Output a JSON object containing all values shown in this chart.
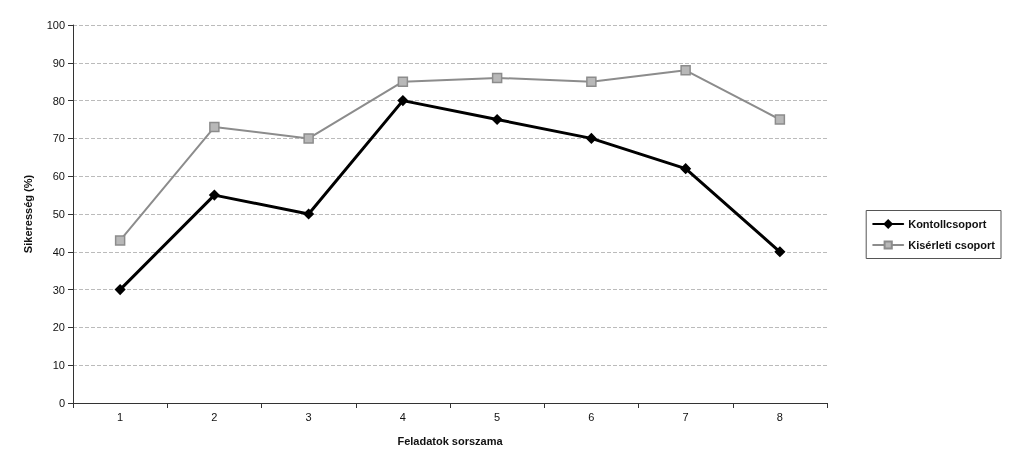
{
  "chart_data": {
    "type": "line",
    "xlabel": "Feladatok sorszama",
    "ylabel": "Sikeresség (%)",
    "categories": [
      "1",
      "2",
      "3",
      "4",
      "5",
      "6",
      "7",
      "8"
    ],
    "series": [
      {
        "name": "Kontollcsoport",
        "color": "#000000",
        "marker": "diamond",
        "values": [
          30,
          55,
          50,
          80,
          75,
          70,
          62,
          40
        ]
      },
      {
        "name": "Kisérleti csoport",
        "color": "#8c8c8c",
        "marker": "square",
        "values": [
          43,
          73,
          70,
          85,
          86,
          85,
          88,
          75
        ]
      }
    ],
    "ylim": [
      0,
      100
    ],
    "yticks": [
      0,
      10,
      20,
      30,
      40,
      50,
      60,
      70,
      80,
      90,
      100
    ],
    "grid": "y",
    "legend": "right",
    "line_style": "solid"
  }
}
